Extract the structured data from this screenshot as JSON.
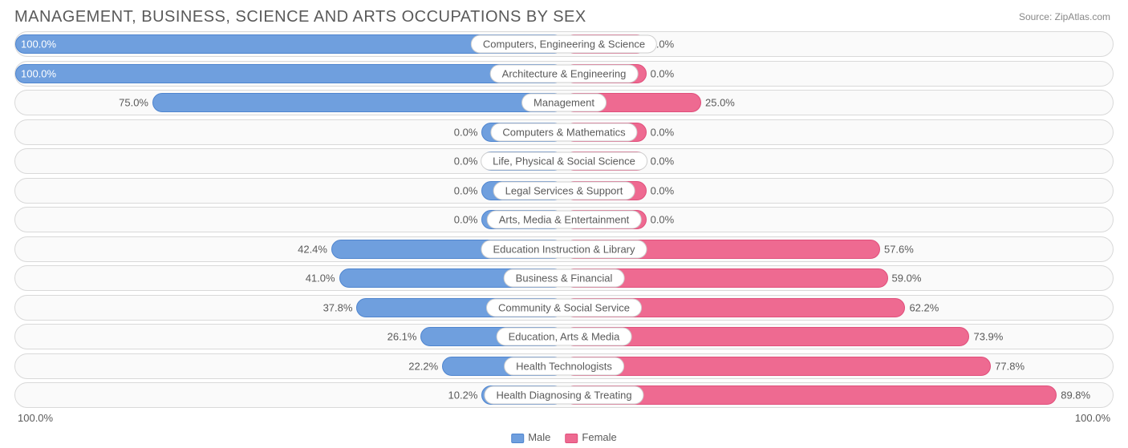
{
  "title": "MANAGEMENT, BUSINESS, SCIENCE AND ARTS OCCUPATIONS BY SEX",
  "source_prefix": "Source: ",
  "source_name": "ZipAtlas.com",
  "axis": {
    "left": "100.0%",
    "right": "100.0%"
  },
  "legend": {
    "male": "Male",
    "female": "Female"
  },
  "colors": {
    "male_fill": "#6f9fde",
    "male_border": "#4f85cf",
    "female_fill": "#ee6a91",
    "female_border": "#e04f7b",
    "track_border": "#d9d9d9",
    "track_bg": "#fafafa",
    "text": "#5a5a5a"
  },
  "min_bar_pct": 15,
  "rows": [
    {
      "label": "Computers, Engineering & Science",
      "male": 100.0,
      "female": 0.0
    },
    {
      "label": "Architecture & Engineering",
      "male": 100.0,
      "female": 0.0
    },
    {
      "label": "Management",
      "male": 75.0,
      "female": 25.0
    },
    {
      "label": "Computers & Mathematics",
      "male": 0.0,
      "female": 0.0
    },
    {
      "label": "Life, Physical & Social Science",
      "male": 0.0,
      "female": 0.0
    },
    {
      "label": "Legal Services & Support",
      "male": 0.0,
      "female": 0.0
    },
    {
      "label": "Arts, Media & Entertainment",
      "male": 0.0,
      "female": 0.0
    },
    {
      "label": "Education Instruction & Library",
      "male": 42.4,
      "female": 57.6
    },
    {
      "label": "Business & Financial",
      "male": 41.0,
      "female": 59.0
    },
    {
      "label": "Community & Social Service",
      "male": 37.8,
      "female": 62.2
    },
    {
      "label": "Education, Arts & Media",
      "male": 26.1,
      "female": 73.9
    },
    {
      "label": "Health Technologists",
      "male": 22.2,
      "female": 77.8
    },
    {
      "label": "Health Diagnosing & Treating",
      "male": 10.2,
      "female": 89.8
    }
  ]
}
